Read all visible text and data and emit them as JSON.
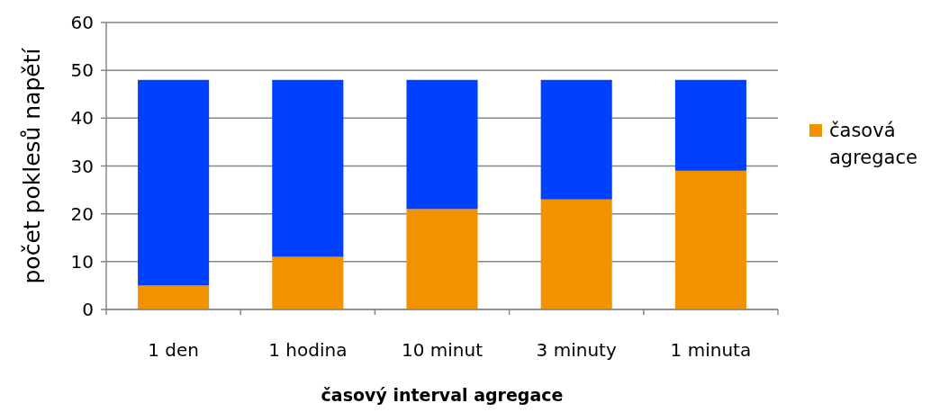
{
  "chart_data": {
    "type": "bar",
    "stacked": true,
    "xlabel": "časový interval agregace",
    "ylabel": "počet poklesů napětí",
    "categories": [
      "1 den",
      "1 hodina",
      "10 minut",
      "3 minuty",
      "1 minuta"
    ],
    "series": [
      {
        "name": "časová agregace",
        "color": "#f39200",
        "values": [
          5,
          11,
          21,
          23,
          29
        ]
      },
      {
        "color": "#0040ff",
        "values": [
          43,
          37,
          27,
          25,
          19
        ]
      }
    ],
    "ylim": [
      0,
      60
    ],
    "yticks": [
      0,
      10,
      20,
      30,
      40,
      50,
      60
    ],
    "grid": "y",
    "legend": "right"
  }
}
